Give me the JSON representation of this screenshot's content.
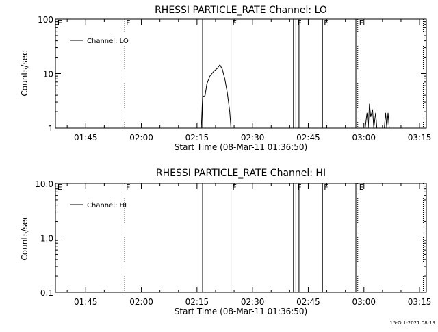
{
  "chart_data": [
    {
      "type": "line",
      "title": "RHESSI PARTICLE_RATE Channel: LO",
      "xlabel": "Start Time (08-Mar-11 01:36:50)",
      "ylabel": "Counts/sec",
      "yscale": "log",
      "ylim": [
        1,
        100
      ],
      "xlim": [
        "01:36:50",
        "03:16:50"
      ],
      "x_ticks": [
        "01:45",
        "02:00",
        "02:15",
        "02:30",
        "02:45",
        "03:00",
        "03:15"
      ],
      "y_ticks": [
        "1",
        "10",
        "100"
      ],
      "legend": {
        "entries": [
          "Channel: LO"
        ],
        "position": "top-left"
      },
      "flags": [
        {
          "time": "01:37:00",
          "label": "E",
          "style": "none"
        },
        {
          "time": "01:55:30",
          "label": "F",
          "style": "dotted"
        },
        {
          "time": "02:16:30",
          "label": "",
          "style": "solid"
        },
        {
          "time": "02:24:10",
          "label": "F",
          "style": "solid"
        },
        {
          "time": "02:41:00",
          "label": "",
          "style": "solid"
        },
        {
          "time": "02:41:40",
          "label": "F",
          "style": "solid"
        },
        {
          "time": "02:42:30",
          "label": "",
          "style": "solid"
        },
        {
          "time": "02:48:50",
          "label": "F",
          "style": "solid"
        },
        {
          "time": "02:57:50",
          "label": "",
          "style": "solid"
        },
        {
          "time": "02:58:20",
          "label": "E",
          "style": "dotted"
        },
        {
          "time": "03:16:00",
          "label": "",
          "style": "dotted"
        }
      ],
      "segments": [
        {
          "name": "Channel: LO",
          "points": [
            [
              "02:16:10",
              1.0
            ],
            [
              "02:16:30",
              3.8
            ],
            [
              "02:17:10",
              3.9
            ],
            [
              "02:17:40",
              6.5
            ],
            [
              "02:18:30",
              9.0
            ],
            [
              "02:19:30",
              11.0
            ],
            [
              "02:20:30",
              12.5
            ],
            [
              "02:21:10",
              14.5
            ],
            [
              "02:21:50",
              12.0
            ],
            [
              "02:22:30",
              8.0
            ],
            [
              "02:23:10",
              4.5
            ],
            [
              "02:23:50",
              2.0
            ],
            [
              "02:24:10",
              1.0
            ]
          ]
        },
        {
          "name": "Channel: LO",
          "points": [
            [
              "03:00:20",
              1.0
            ],
            [
              "03:00:50",
              1.9
            ],
            [
              "03:01:10",
              1.0
            ],
            [
              "03:01:30",
              2.8
            ],
            [
              "03:01:50",
              1.6
            ],
            [
              "03:02:20",
              2.2
            ],
            [
              "03:02:40",
              1.0
            ],
            [
              "03:03:10",
              1.9
            ],
            [
              "03:03:30",
              1.0
            ]
          ]
        },
        {
          "name": "Channel: LO",
          "points": [
            [
              "03:05:30",
              1.0
            ],
            [
              "03:05:50",
              1.9
            ],
            [
              "03:06:10",
              1.0
            ],
            [
              "03:06:30",
              1.9
            ],
            [
              "03:06:50",
              1.0
            ]
          ]
        }
      ]
    },
    {
      "type": "line",
      "title": "RHESSI PARTICLE_RATE Channel: HI",
      "xlabel": "Start Time (08-Mar-11 01:36:50)",
      "ylabel": "Counts/sec",
      "yscale": "log",
      "ylim": [
        0.1,
        10
      ],
      "xlim": [
        "01:36:50",
        "03:16:50"
      ],
      "x_ticks": [
        "01:45",
        "02:00",
        "02:15",
        "02:30",
        "02:45",
        "03:00",
        "03:15"
      ],
      "y_ticks": [
        "0.1",
        "1.0",
        "10.0"
      ],
      "legend": {
        "entries": [
          "Channel: HI"
        ],
        "position": "top-left"
      },
      "flags": [
        {
          "time": "01:37:00",
          "label": "E",
          "style": "none"
        },
        {
          "time": "01:55:30",
          "label": "F",
          "style": "dotted"
        },
        {
          "time": "02:16:30",
          "label": "",
          "style": "solid"
        },
        {
          "time": "02:24:10",
          "label": "F",
          "style": "solid"
        },
        {
          "time": "02:41:00",
          "label": "",
          "style": "solid"
        },
        {
          "time": "02:41:40",
          "label": "F",
          "style": "solid"
        },
        {
          "time": "02:42:30",
          "label": "",
          "style": "solid"
        },
        {
          "time": "02:48:50",
          "label": "F",
          "style": "solid"
        },
        {
          "time": "02:57:50",
          "label": "",
          "style": "solid"
        },
        {
          "time": "02:58:20",
          "label": "E",
          "style": "dotted"
        },
        {
          "time": "03:16:00",
          "label": "",
          "style": "dotted"
        }
      ],
      "segments": []
    }
  ],
  "footer": {
    "timestamp": "15-Oct-2021 08:19"
  }
}
